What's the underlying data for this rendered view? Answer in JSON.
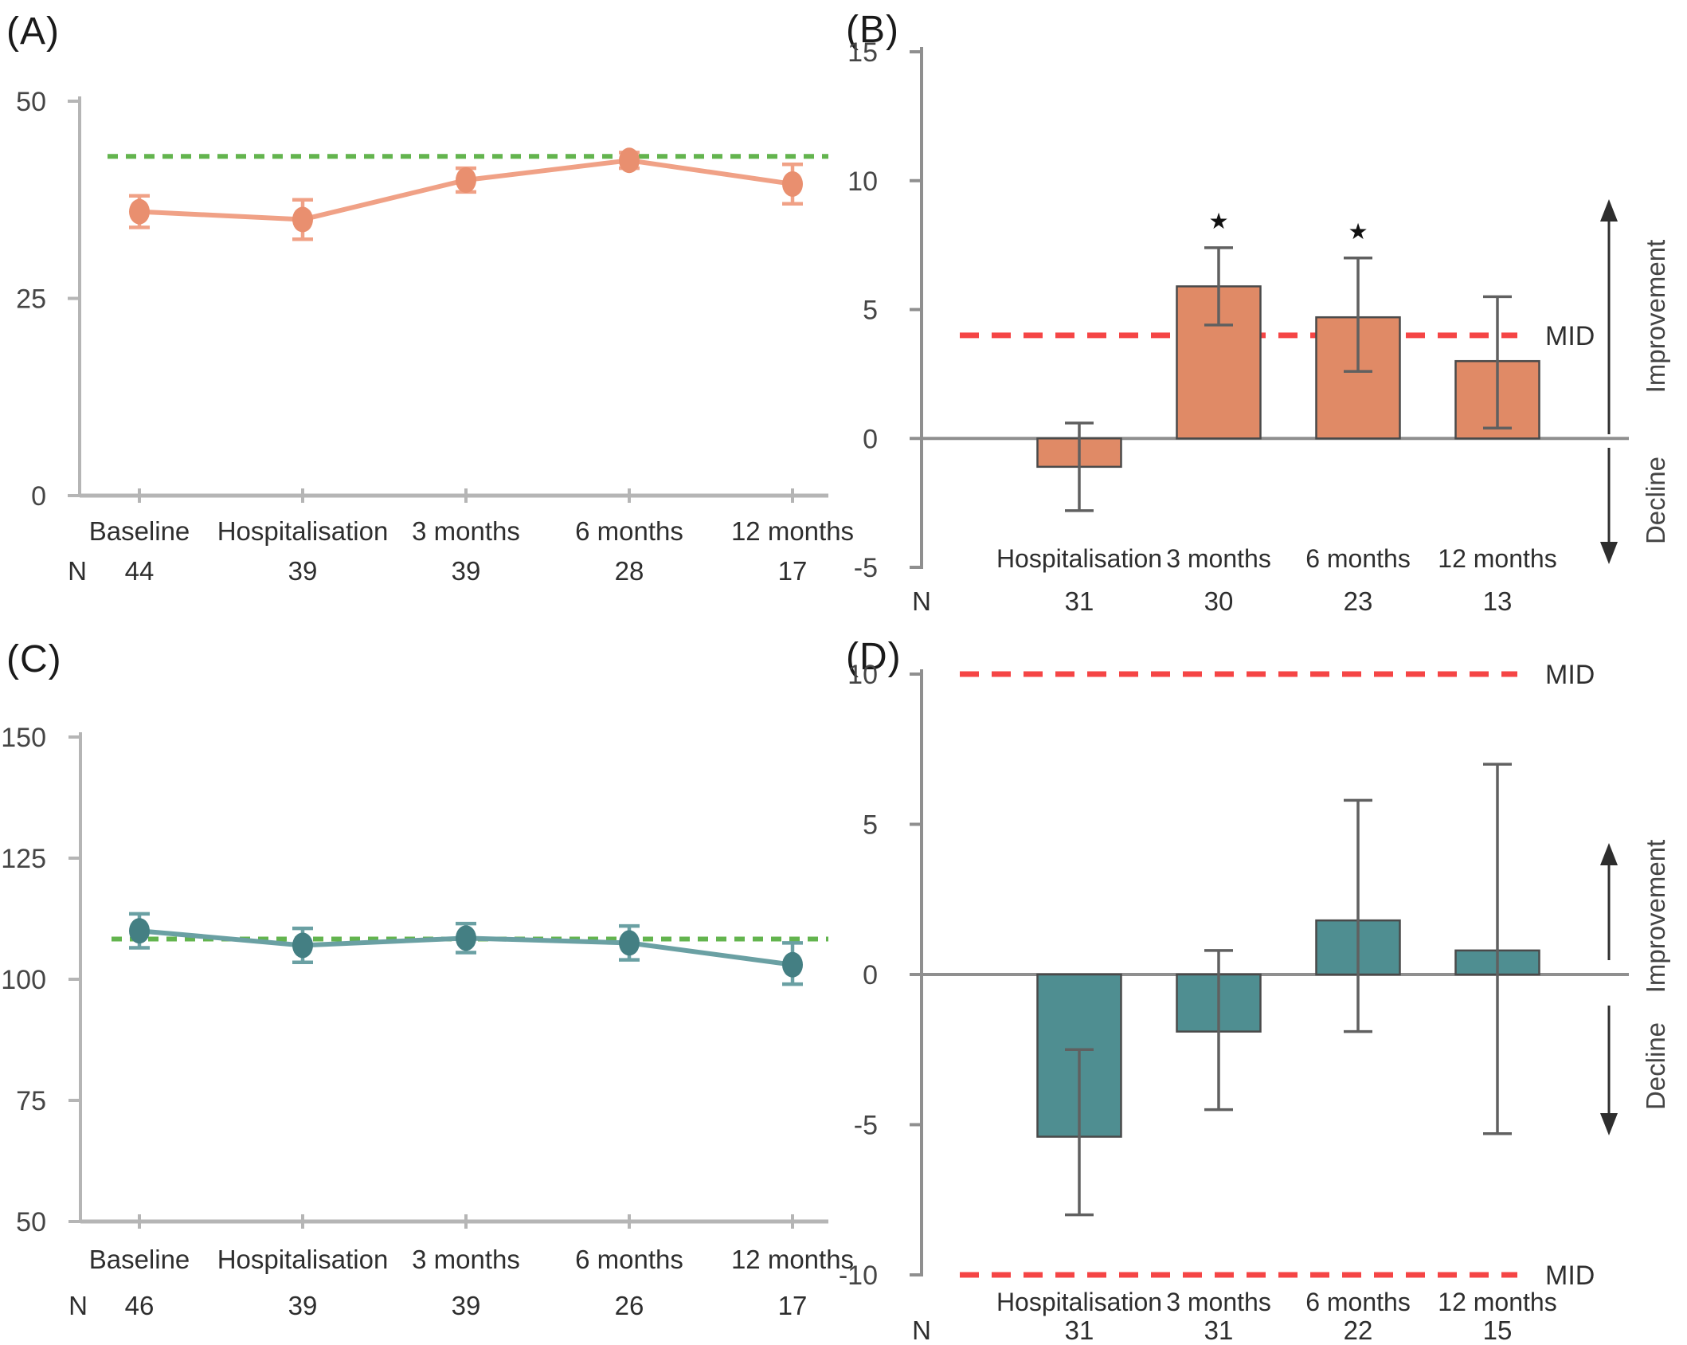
{
  "figure": {
    "description": "Four-panel clinical outcomes figure with line charts (absolute scores) and bar charts (change scores vs MID)",
    "colors": {
      "salmon_line": "#f0a186",
      "salmon_point": "#e98f6f",
      "salmon_fill": "#e08a66",
      "teal_line": "#6aa0a3",
      "teal_point": "#447f83",
      "teal_fill": "#4f8e91",
      "green_dash": "#63b44e",
      "red_dash": "#f54545",
      "axis_light": "#b5b5b5",
      "axis_mid": "#8f8f8f",
      "bar_outline": "#4a4a4a",
      "error_dark": "#606060",
      "text_dark": "#2e2e2e",
      "text_gray": "#454545",
      "star": "#111111"
    }
  },
  "chart_data": [
    {
      "id": "A",
      "letter": "(A)",
      "type": "line",
      "palette": "salmon",
      "categories": [
        "Baseline",
        "Hospitalisation",
        "3 months",
        "6 months",
        "12 months"
      ],
      "values": [
        36,
        35,
        40,
        42.5,
        39.5
      ],
      "error_low": [
        34,
        32.5,
        38.5,
        41.5,
        37
      ],
      "error_high": [
        38,
        37.5,
        41.5,
        43.5,
        42
      ],
      "ylim": [
        0,
        50
      ],
      "yticks": [
        50,
        25,
        0
      ],
      "reference_line": {
        "value": 43,
        "style": "dashed",
        "color": "green"
      },
      "n_label": "N",
      "n_values": [
        "44",
        "39",
        "39",
        "28",
        "17"
      ]
    },
    {
      "id": "B",
      "letter": "(B)",
      "type": "bar",
      "palette": "salmon",
      "categories": [
        "Hospitalisation",
        "3 months",
        "6 months",
        "12 months"
      ],
      "values": [
        -1.1,
        5.9,
        4.7,
        3.0
      ],
      "error_low": [
        -2.8,
        4.4,
        2.6,
        0.4
      ],
      "error_high": [
        0.6,
        7.4,
        7.0,
        5.5
      ],
      "significance": [
        "",
        "★",
        "★",
        ""
      ],
      "ylim": [
        -5,
        15
      ],
      "yticks": [
        15,
        10,
        5,
        0,
        -5
      ],
      "mid_lines": [
        {
          "value": 4,
          "label": "MID"
        }
      ],
      "improvement_label": "Improvement",
      "decline_label": "Decline",
      "n_label": "N",
      "n_values": [
        "31",
        "30",
        "23",
        "13"
      ]
    },
    {
      "id": "C",
      "letter": "(C)",
      "type": "line",
      "palette": "teal",
      "categories": [
        "Baseline",
        "Hospitalisation",
        "3 months",
        "6 months",
        "12 months"
      ],
      "values": [
        110,
        107,
        108.5,
        107.5,
        103
      ],
      "error_low": [
        106.5,
        103.5,
        105.5,
        104,
        99
      ],
      "error_high": [
        113.5,
        110.5,
        111.5,
        111,
        107.5
      ],
      "ylim": [
        50,
        150
      ],
      "yticks": [
        150,
        125,
        100,
        75,
        50
      ],
      "reference_line": {
        "value": 108.3,
        "style": "dashed",
        "color": "green"
      },
      "n_label": "N",
      "n_values": [
        "46",
        "39",
        "39",
        "26",
        "17"
      ]
    },
    {
      "id": "D",
      "letter": "(D)",
      "type": "bar",
      "palette": "teal",
      "categories": [
        "Hospitalisation",
        "3 months",
        "6 months",
        "12 months"
      ],
      "values": [
        -5.4,
        -1.9,
        1.8,
        0.8
      ],
      "error_low": [
        -8,
        -4.5,
        -1.9,
        -5.3
      ],
      "error_high": [
        -2.5,
        0.8,
        5.8,
        7.0
      ],
      "significance": [
        "",
        "",
        "",
        ""
      ],
      "ylim": [
        -10,
        10
      ],
      "yticks": [
        10,
        5,
        0,
        -5,
        -10
      ],
      "mid_lines": [
        {
          "value": 10,
          "label": "MID"
        },
        {
          "value": -10,
          "label": "MID"
        }
      ],
      "improvement_label": "Improvement",
      "decline_label": "Decline",
      "n_label": "N",
      "n_values": [
        "31",
        "31",
        "22",
        "15"
      ]
    }
  ]
}
